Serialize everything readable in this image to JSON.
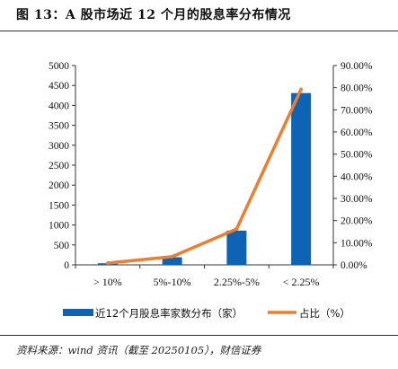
{
  "figure": {
    "title": "图 13：A 股市场近 12 个月的股息率分布情况",
    "source": "资料来源：wind 资讯（截至 20250105），财信证券"
  },
  "colors": {
    "bar": "#0e63b5",
    "line": "#ed7d31",
    "axis": "#333333"
  },
  "chart_data": {
    "type": "bar",
    "categories": [
      "> 10%",
      "5%-10%",
      "2.25%-5%",
      "< 2.25%"
    ],
    "series": [
      {
        "name": "近12个月股息率家数分布（家）",
        "type": "bar",
        "axis": "left",
        "values": [
          40,
          190,
          860,
          4310
        ]
      },
      {
        "name": "占比（%）",
        "type": "line",
        "axis": "right",
        "values": [
          0.8,
          3.7,
          16.2,
          79.3
        ]
      }
    ],
    "y_left": {
      "lim": [
        0,
        5000
      ],
      "ticks": [
        "0",
        "500",
        "1000",
        "1500",
        "2000",
        "2500",
        "3000",
        "3500",
        "4000",
        "4500",
        "5000"
      ]
    },
    "y_right": {
      "lim": [
        0,
        90
      ],
      "ticks": [
        "0.00%",
        "10.00%",
        "20.00%",
        "30.00%",
        "40.00%",
        "50.00%",
        "60.00%",
        "70.00%",
        "80.00%",
        "90.00%"
      ]
    },
    "grid": false,
    "legend": "bottom"
  }
}
